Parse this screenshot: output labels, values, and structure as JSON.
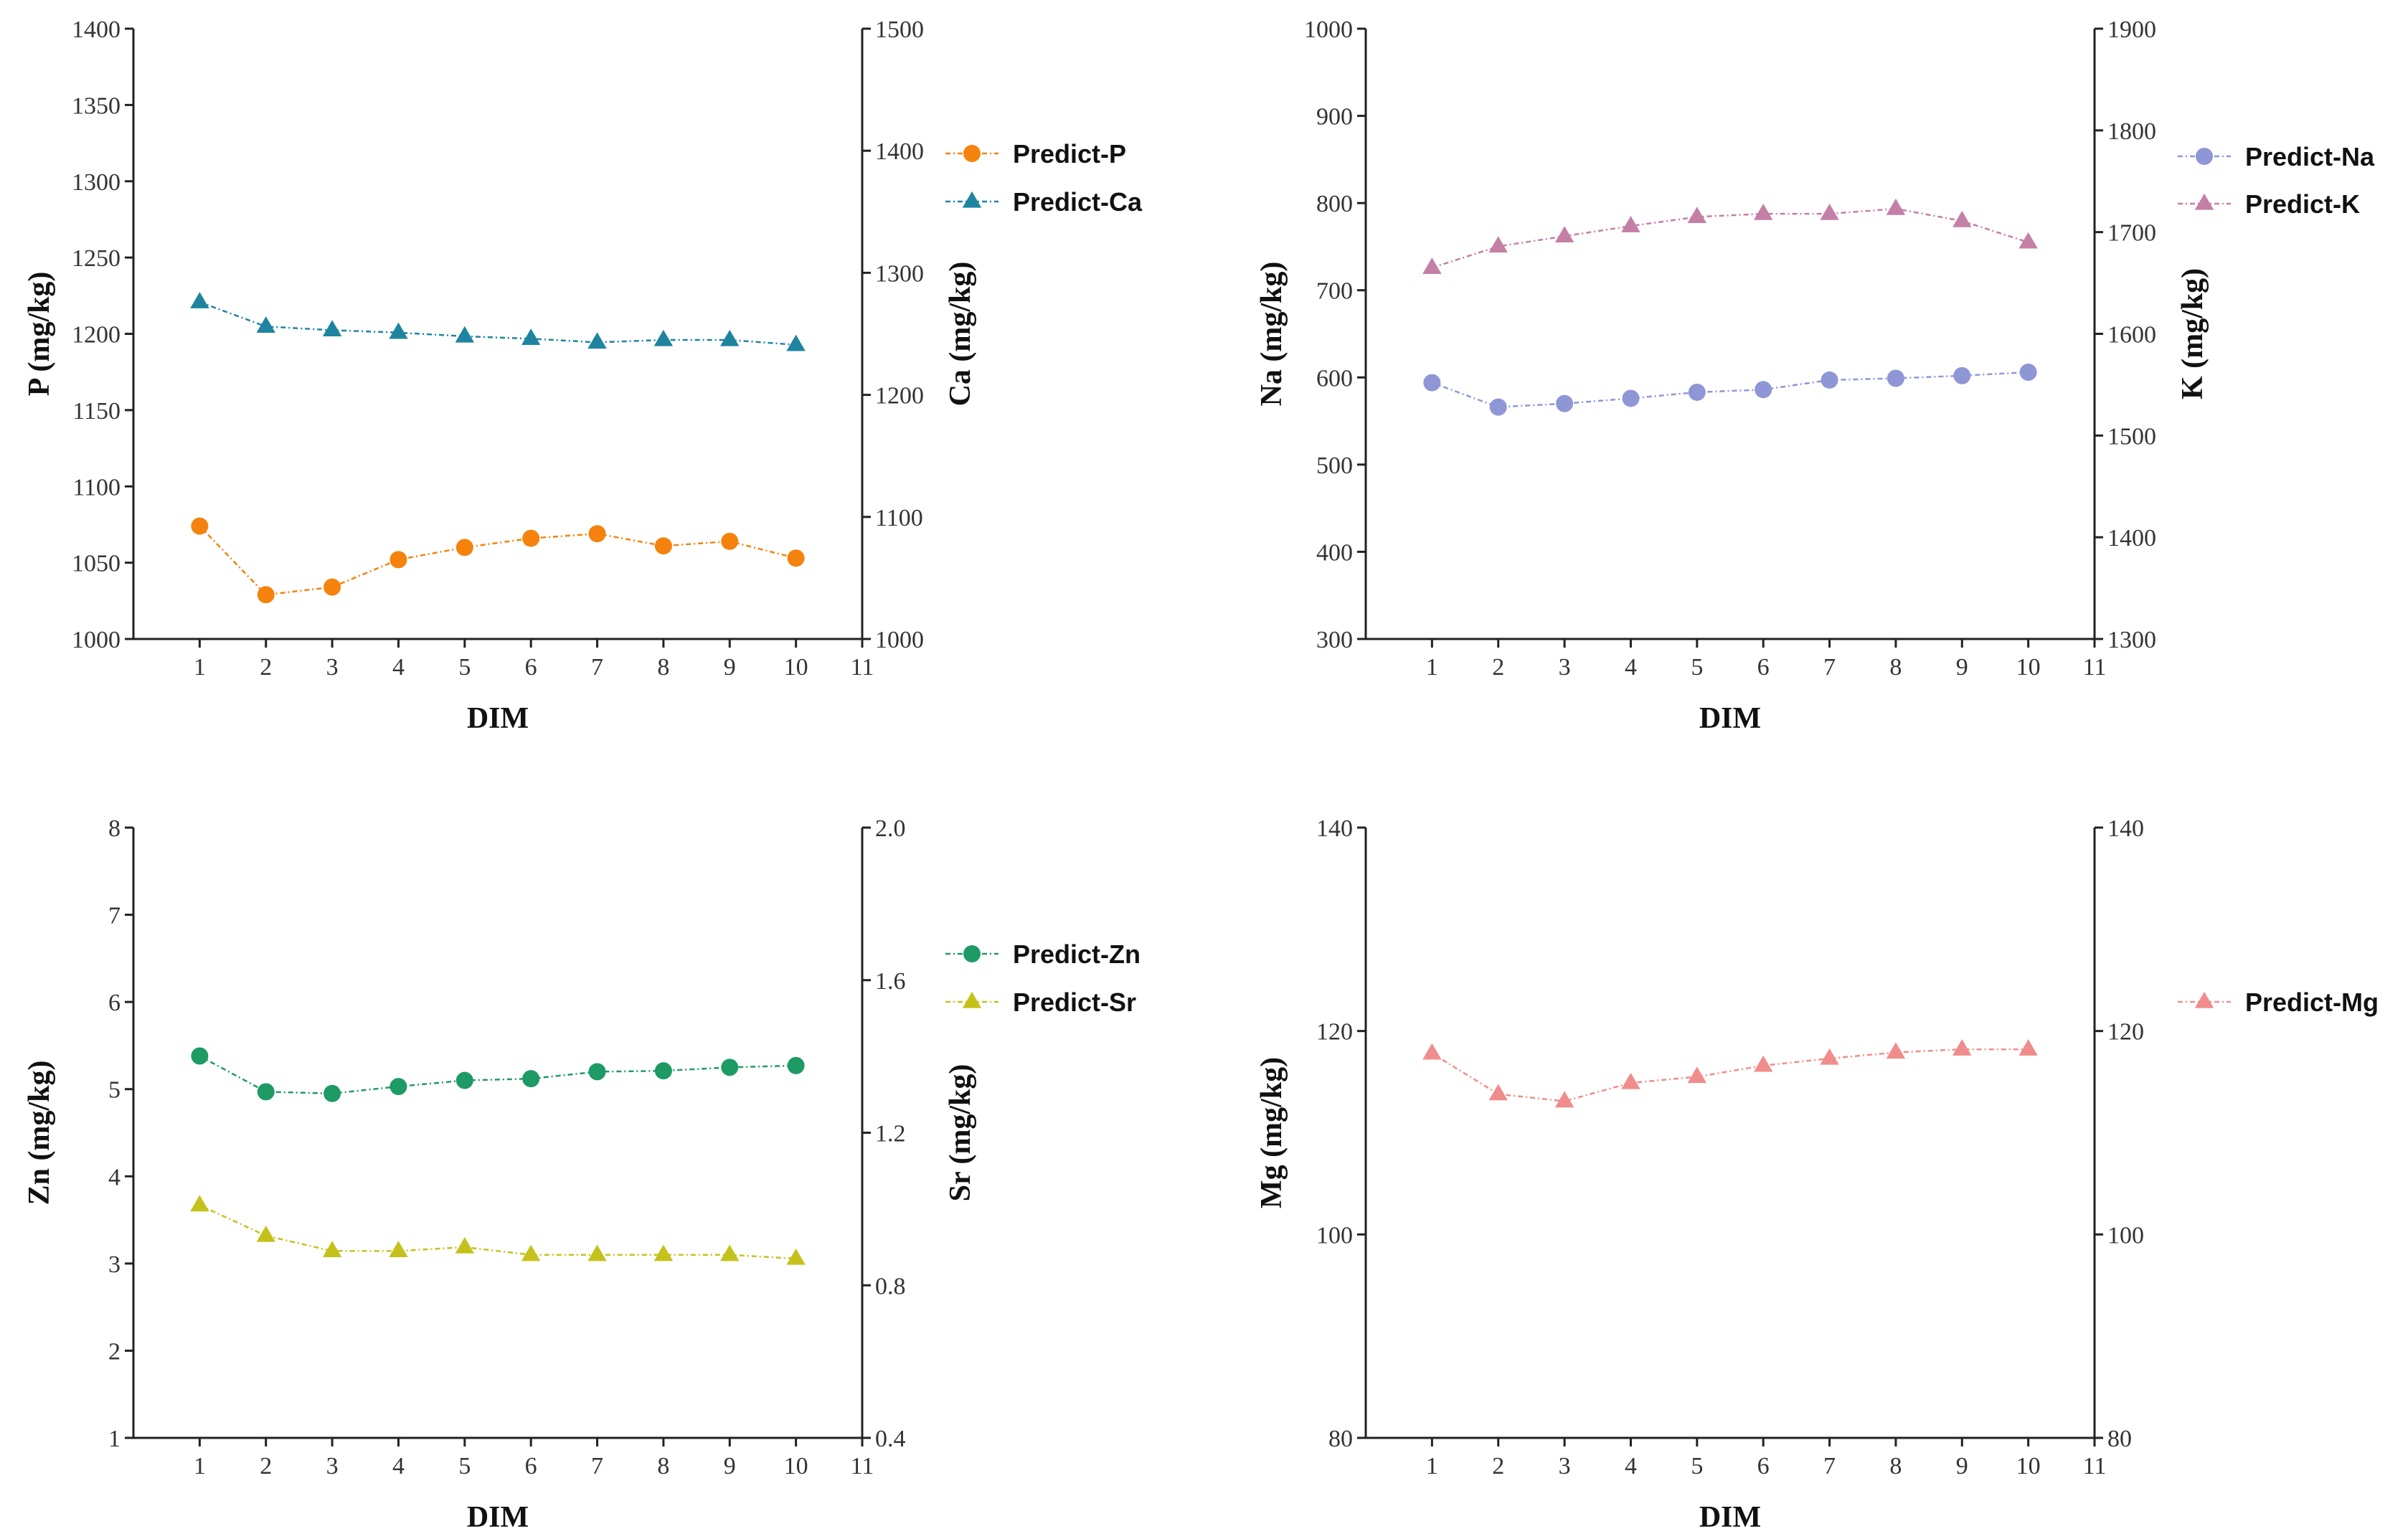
{
  "chart_data": [
    {
      "type": "line",
      "x": [
        1,
        2,
        3,
        4,
        5,
        6,
        7,
        8,
        9,
        10
      ],
      "xlabel": "DIM",
      "xlim": [
        0,
        11
      ],
      "xticks": [
        1,
        2,
        3,
        4,
        5,
        6,
        7,
        8,
        9,
        10,
        11
      ],
      "left_axis": {
        "label": "P (mg/kg)",
        "ylim": [
          1000,
          1400
        ],
        "ticks": [
          1000,
          1050,
          1100,
          1150,
          1200,
          1250,
          1300,
          1350,
          1400
        ]
      },
      "right_axis": {
        "label": "Ca (mg/kg)",
        "ylim": [
          1000,
          1500
        ],
        "ticks": [
          1000,
          1100,
          1200,
          1300,
          1400,
          1500
        ]
      },
      "legend_position": "right",
      "series": [
        {
          "name": "Predict-P",
          "axis": "left",
          "marker": "circle",
          "color": "#F5820D",
          "values": [
            1074,
            1029,
            1034,
            1052,
            1060,
            1066,
            1069,
            1061,
            1064,
            1053
          ]
        },
        {
          "name": "Predict-Ca",
          "axis": "right",
          "marker": "triangle",
          "color": "#1E84A0",
          "values": [
            1276,
            1256,
            1253,
            1251,
            1248,
            1246,
            1243,
            1245,
            1245,
            1241
          ]
        }
      ]
    },
    {
      "type": "line",
      "x": [
        1,
        2,
        3,
        4,
        5,
        6,
        7,
        8,
        9,
        10
      ],
      "xlabel": "DIM",
      "xlim": [
        0,
        11
      ],
      "xticks": [
        1,
        2,
        3,
        4,
        5,
        6,
        7,
        8,
        9,
        10,
        11
      ],
      "left_axis": {
        "label": "Na (mg/kg)",
        "ylim": [
          300,
          1000
        ],
        "ticks": [
          300,
          400,
          500,
          600,
          700,
          800,
          900,
          1000
        ]
      },
      "right_axis": {
        "label": "K (mg/kg)",
        "ylim": [
          1300,
          1900
        ],
        "ticks": [
          1300,
          1400,
          1500,
          1600,
          1700,
          1800,
          1900
        ]
      },
      "legend_position": "right",
      "series": [
        {
          "name": "Predict-Na",
          "axis": "left",
          "marker": "circle",
          "color": "#8F96D6",
          "values": [
            594,
            566,
            570,
            576,
            583,
            586,
            597,
            599,
            602,
            606
          ]
        },
        {
          "name": "Predict-K",
          "axis": "right",
          "marker": "triangle",
          "color": "#C47FA6",
          "values": [
            1665,
            1686,
            1696,
            1706,
            1715,
            1718,
            1718,
            1723,
            1711,
            1690
          ]
        }
      ]
    },
    {
      "type": "line",
      "x": [
        1,
        2,
        3,
        4,
        5,
        6,
        7,
        8,
        9,
        10
      ],
      "xlabel": "DIM",
      "xlim": [
        0,
        11
      ],
      "xticks": [
        1,
        2,
        3,
        4,
        5,
        6,
        7,
        8,
        9,
        10,
        11
      ],
      "left_axis": {
        "label": "Zn (mg/kg)",
        "ylim": [
          1,
          8
        ],
        "ticks": [
          1,
          2,
          3,
          4,
          5,
          6,
          7,
          8
        ]
      },
      "right_axis": {
        "label": "Sr (mg/kg)",
        "ylim": [
          0.4,
          2.0
        ],
        "ticks": [
          "0.4",
          "0.8",
          "1.2",
          "1.6",
          "2.0"
        ]
      },
      "legend_position": "right",
      "series": [
        {
          "name": "Predict-Zn",
          "axis": "left",
          "marker": "circle",
          "color": "#1E9A64",
          "values": [
            5.38,
            4.97,
            4.95,
            5.03,
            5.1,
            5.12,
            5.2,
            5.21,
            5.25,
            5.27
          ]
        },
        {
          "name": "Predict-Sr",
          "axis": "right",
          "marker": "triangle",
          "color": "#C4C21A",
          "values": [
            1.01,
            0.93,
            0.89,
            0.89,
            0.9,
            0.88,
            0.88,
            0.88,
            0.88,
            0.87
          ]
        }
      ]
    },
    {
      "type": "line",
      "x": [
        1,
        2,
        3,
        4,
        5,
        6,
        7,
        8,
        9,
        10
      ],
      "xlabel": "DIM",
      "xlim": [
        0,
        11
      ],
      "xticks": [
        1,
        2,
        3,
        4,
        5,
        6,
        7,
        8,
        9,
        10,
        11
      ],
      "left_axis": {
        "label": "Mg (mg/kg)",
        "ylim": [
          80,
          140
        ],
        "ticks": [
          80,
          100,
          120,
          140
        ]
      },
      "right_axis": {
        "label": "",
        "ylim": [
          80,
          140
        ],
        "ticks": [
          80,
          100,
          120,
          140
        ]
      },
      "legend_position": "right",
      "series": [
        {
          "name": "Predict-Mg",
          "axis": "left",
          "marker": "triangle",
          "color": "#F08C8C",
          "values": [
            117.8,
            113.8,
            113.1,
            114.9,
            115.5,
            116.6,
            117.3,
            117.9,
            118.2,
            118.2
          ]
        }
      ]
    }
  ]
}
